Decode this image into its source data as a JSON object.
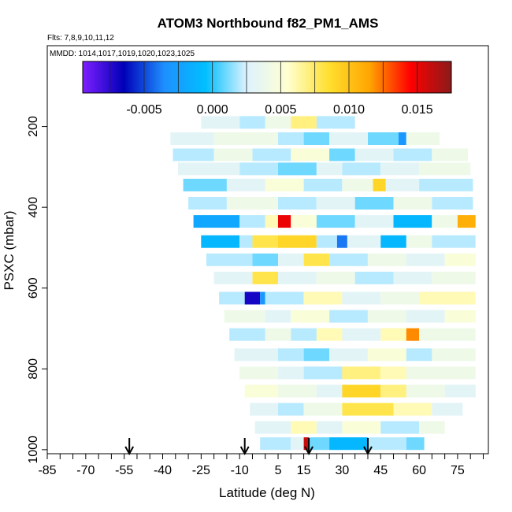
{
  "chart_data": {
    "type": "heatmap",
    "title": "ATOM3 Northbound f82_PM1_AMS",
    "flights_label": "Flts: 7,8,9,10,11,12",
    "dates_label": "MMDD: 1014,1017,1019,1020,1023,1025",
    "xlabel": "Latitude (deg N)",
    "ylabel": "PSXC (mbar)",
    "xlim": [
      -85,
      87
    ],
    "ylim": [
      1010,
      0
    ],
    "x_ticks": [
      "-85",
      "-70",
      "-55",
      "-40",
      "-25",
      "-10",
      "5",
      "15",
      "30",
      "45",
      "60",
      "75"
    ],
    "x_tick_values": [
      -85,
      -70,
      -55,
      -40,
      -25,
      -10,
      5,
      15,
      30,
      45,
      60,
      75
    ],
    "y_ticks": [
      "200",
      "400",
      "600",
      "800",
      "1000"
    ],
    "y_tick_values": [
      200,
      400,
      600,
      800,
      1000
    ],
    "colorbar": {
      "range": [
        -0.0095,
        0.0175
      ],
      "tick_labels": [
        "-0.005",
        "0.000",
        "0.005",
        "0.010",
        "0.015"
      ],
      "tick_values": [
        -0.005,
        0.0,
        0.005,
        0.01,
        0.015
      ],
      "colors": [
        "#7f1fff",
        "#0000b8",
        "#1e90ff",
        "#00bfff",
        "#ddf2ff",
        "#ffffd0",
        "#ffe030",
        "#ffa500",
        "#ff0000",
        "#8b1a1a"
      ]
    },
    "flight_markers_lat": [
      -53,
      -8,
      17,
      40
    ],
    "rows": [
      {
        "p": 190,
        "lat_min": -25,
        "lat_max": 35,
        "segments": [
          [
            -25,
            -10,
            0.003
          ],
          [
            -10,
            0,
            0.002
          ],
          [
            0,
            10,
            0.004
          ],
          [
            10,
            20,
            0.007
          ],
          [
            20,
            35,
            0.002
          ]
        ]
      },
      {
        "p": 230,
        "lat_min": -37,
        "lat_max": 68,
        "segments": [
          [
            -37,
            -20,
            0.003
          ],
          [
            -20,
            5,
            0.004
          ],
          [
            5,
            15,
            0.002
          ],
          [
            15,
            25,
            0.001
          ],
          [
            25,
            40,
            0.003
          ],
          [
            40,
            52,
            0.001
          ],
          [
            52,
            55,
            -0.003
          ],
          [
            55,
            68,
            0.004
          ]
        ]
      },
      {
        "p": 270,
        "lat_min": -36,
        "lat_max": 79,
        "segments": [
          [
            -36,
            -20,
            0.002
          ],
          [
            -20,
            -5,
            0.004
          ],
          [
            -5,
            10,
            0.002
          ],
          [
            10,
            25,
            0.005
          ],
          [
            25,
            35,
            0.001
          ],
          [
            35,
            50,
            0.003
          ],
          [
            50,
            65,
            0.002
          ],
          [
            65,
            79,
            0.004
          ]
        ]
      },
      {
        "p": 305,
        "lat_min": -34,
        "lat_max": 80,
        "segments": [
          [
            -34,
            -10,
            0.003
          ],
          [
            -10,
            5,
            0.002
          ],
          [
            5,
            20,
            0.001
          ],
          [
            20,
            30,
            0.003
          ],
          [
            30,
            45,
            0.002
          ],
          [
            45,
            60,
            0.003
          ],
          [
            60,
            80,
            0.004
          ]
        ]
      },
      {
        "p": 345,
        "lat_min": -32,
        "lat_max": 81,
        "segments": [
          [
            -32,
            -15,
            0.001
          ],
          [
            -15,
            0,
            0.003
          ],
          [
            0,
            15,
            0.005
          ],
          [
            15,
            30,
            0.002
          ],
          [
            30,
            42,
            0.004
          ],
          [
            42,
            47,
            0.009
          ],
          [
            47,
            60,
            0.003
          ],
          [
            60,
            81,
            0.002
          ]
        ]
      },
      {
        "p": 390,
        "lat_min": -30,
        "lat_max": 81,
        "segments": [
          [
            -30,
            -15,
            0.002
          ],
          [
            -15,
            5,
            0.004
          ],
          [
            5,
            20,
            0.002
          ],
          [
            20,
            35,
            0.003
          ],
          [
            35,
            50,
            0.001
          ],
          [
            50,
            65,
            0.004
          ],
          [
            65,
            81,
            0.002
          ]
        ]
      },
      {
        "p": 435,
        "lat_min": -28,
        "lat_max": 82,
        "segments": [
          [
            -28,
            -10,
            -0.002
          ],
          [
            -10,
            0,
            0.002
          ],
          [
            0,
            5,
            0.006
          ],
          [
            5,
            10,
            0.015
          ],
          [
            10,
            20,
            0.005
          ],
          [
            20,
            35,
            0.001
          ],
          [
            35,
            50,
            0.003
          ],
          [
            50,
            65,
            -0.001
          ],
          [
            65,
            75,
            0.004
          ],
          [
            75,
            82,
            0.011
          ]
        ]
      },
      {
        "p": 485,
        "lat_min": -25,
        "lat_max": 82,
        "segments": [
          [
            -25,
            -10,
            -0.001
          ],
          [
            -10,
            -5,
            0.002
          ],
          [
            -5,
            5,
            0.008
          ],
          [
            5,
            20,
            0.009
          ],
          [
            20,
            28,
            0.002
          ],
          [
            28,
            32,
            -0.004
          ],
          [
            32,
            45,
            0.003
          ],
          [
            45,
            55,
            -0.001
          ],
          [
            55,
            65,
            0.004
          ],
          [
            65,
            82,
            0.002
          ]
        ]
      },
      {
        "p": 530,
        "lat_min": -23,
        "lat_max": 82,
        "segments": [
          [
            -23,
            -5,
            0.002
          ],
          [
            -5,
            5,
            0.001
          ],
          [
            5,
            15,
            0.003
          ],
          [
            15,
            25,
            0.008
          ],
          [
            25,
            40,
            0.002
          ],
          [
            40,
            55,
            0.004
          ],
          [
            55,
            70,
            0.003
          ],
          [
            70,
            82,
            0.005
          ]
        ]
      },
      {
        "p": 575,
        "lat_min": -20,
        "lat_max": 82,
        "segments": [
          [
            -20,
            -5,
            0.003
          ],
          [
            -5,
            5,
            0.008
          ],
          [
            5,
            20,
            0.003
          ],
          [
            20,
            35,
            0.004
          ],
          [
            35,
            50,
            0.002
          ],
          [
            50,
            65,
            0.003
          ],
          [
            65,
            82,
            0.004
          ]
        ]
      },
      {
        "p": 625,
        "lat_min": -18,
        "lat_max": 82,
        "segments": [
          [
            -18,
            -8,
            0.002
          ],
          [
            -8,
            -2,
            -0.007
          ],
          [
            -2,
            0,
            -0.003
          ],
          [
            0,
            15,
            0.002
          ],
          [
            15,
            30,
            0.006
          ],
          [
            30,
            45,
            0.003
          ],
          [
            45,
            60,
            0.004
          ],
          [
            60,
            82,
            0.006
          ]
        ]
      },
      {
        "p": 670,
        "lat_min": -16,
        "lat_max": 82,
        "segments": [
          [
            -16,
            0,
            0.004
          ],
          [
            0,
            10,
            0.003
          ],
          [
            10,
            25,
            0.005
          ],
          [
            25,
            40,
            0.002
          ],
          [
            40,
            55,
            0.004
          ],
          [
            55,
            70,
            0.003
          ],
          [
            70,
            82,
            0.005
          ]
        ]
      },
      {
        "p": 715,
        "lat_min": -14,
        "lat_max": 82,
        "segments": [
          [
            -14,
            0,
            0.002
          ],
          [
            0,
            10,
            0.004
          ],
          [
            10,
            20,
            0.002
          ],
          [
            20,
            30,
            0.006
          ],
          [
            30,
            45,
            0.003
          ],
          [
            45,
            55,
            0.006
          ],
          [
            55,
            60,
            0.012
          ],
          [
            60,
            82,
            0.004
          ]
        ]
      },
      {
        "p": 765,
        "lat_min": -12,
        "lat_max": 82,
        "segments": [
          [
            -12,
            5,
            0.003
          ],
          [
            5,
            15,
            0.002
          ],
          [
            15,
            25,
            0.001
          ],
          [
            25,
            40,
            0.003
          ],
          [
            40,
            55,
            0.005
          ],
          [
            55,
            65,
            0.002
          ],
          [
            65,
            82,
            0.004
          ]
        ]
      },
      {
        "p": 810,
        "lat_min": -10,
        "lat_max": 82,
        "segments": [
          [
            -10,
            5,
            0.004
          ],
          [
            5,
            15,
            0.003
          ],
          [
            15,
            30,
            0.002
          ],
          [
            30,
            45,
            0.007
          ],
          [
            45,
            55,
            0.006
          ],
          [
            55,
            82,
            0.004
          ]
        ]
      },
      {
        "p": 855,
        "lat_min": -8,
        "lat_max": 82,
        "segments": [
          [
            -8,
            5,
            0.005
          ],
          [
            5,
            20,
            0.004
          ],
          [
            20,
            30,
            0.003
          ],
          [
            30,
            45,
            0.009
          ],
          [
            45,
            55,
            0.007
          ],
          [
            55,
            70,
            0.004
          ],
          [
            70,
            82,
            0.003
          ]
        ]
      },
      {
        "p": 900,
        "lat_min": -6,
        "lat_max": 77,
        "segments": [
          [
            -6,
            5,
            0.003
          ],
          [
            5,
            15,
            0.002
          ],
          [
            15,
            30,
            0.004
          ],
          [
            30,
            50,
            0.008
          ],
          [
            50,
            65,
            0.006
          ],
          [
            65,
            77,
            0.003
          ]
        ]
      },
      {
        "p": 945,
        "lat_min": -4,
        "lat_max": 70,
        "segments": [
          [
            -4,
            10,
            0.003
          ],
          [
            10,
            20,
            0.006
          ],
          [
            20,
            30,
            0.003
          ],
          [
            30,
            45,
            0.005
          ],
          [
            45,
            60,
            0.002
          ],
          [
            60,
            70,
            0.004
          ]
        ]
      },
      {
        "p": 985,
        "lat_min": -2,
        "lat_max": 62,
        "segments": [
          [
            -2,
            10,
            0.002
          ],
          [
            10,
            15,
            0.003
          ],
          [
            15,
            17,
            0.016
          ],
          [
            17,
            25,
            0.001
          ],
          [
            25,
            40,
            -0.001
          ],
          [
            40,
            55,
            0.002
          ],
          [
            55,
            62,
            0.001
          ]
        ]
      }
    ]
  }
}
